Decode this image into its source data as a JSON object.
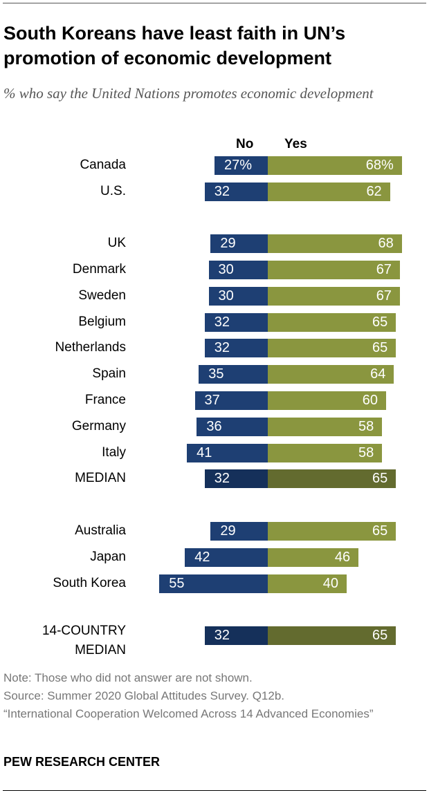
{
  "title": "South Koreans have least faith in UN’s promotion of economic development",
  "subtitle": "% who say the United Nations promotes economic development",
  "colors": {
    "no": "#1e3f73",
    "yes": "#8a963f",
    "no_median": "#15305a",
    "yes_median": "#636b2f"
  },
  "chart_data": {
    "type": "bar",
    "orientation": "horizontal-diverging",
    "series_labels": {
      "no": "No",
      "yes": "Yes"
    },
    "rows": [
      {
        "label": "Canada",
        "no": 27,
        "yes": 68,
        "no_text": "27%",
        "yes_text": "68%"
      },
      {
        "label": "U.S.",
        "no": 32,
        "yes": 62,
        "no_text": "32",
        "yes_text": "62"
      },
      {
        "label": "UK",
        "no": 29,
        "yes": 68,
        "no_text": "29",
        "yes_text": "68"
      },
      {
        "label": "Denmark",
        "no": 30,
        "yes": 67,
        "no_text": "30",
        "yes_text": "67"
      },
      {
        "label": "Sweden",
        "no": 30,
        "yes": 67,
        "no_text": "30",
        "yes_text": "67"
      },
      {
        "label": "Belgium",
        "no": 32,
        "yes": 65,
        "no_text": "32",
        "yes_text": "65"
      },
      {
        "label": "Netherlands",
        "no": 32,
        "yes": 65,
        "no_text": "32",
        "yes_text": "65"
      },
      {
        "label": "Spain",
        "no": 35,
        "yes": 64,
        "no_text": "35",
        "yes_text": "64"
      },
      {
        "label": "France",
        "no": 37,
        "yes": 60,
        "no_text": "37",
        "yes_text": "60"
      },
      {
        "label": "Germany",
        "no": 36,
        "yes": 58,
        "no_text": "36",
        "yes_text": "58"
      },
      {
        "label": "Italy",
        "no": 41,
        "yes": 58,
        "no_text": "41",
        "yes_text": "58"
      },
      {
        "label": "MEDIAN",
        "no": 32,
        "yes": 65,
        "no_text": "32",
        "yes_text": "65",
        "median": true
      },
      {
        "label": "Australia",
        "no": 29,
        "yes": 65,
        "no_text": "29",
        "yes_text": "65"
      },
      {
        "label": "Japan",
        "no": 42,
        "yes": 46,
        "no_text": "42",
        "yes_text": "46"
      },
      {
        "label": "South Korea",
        "no": 55,
        "yes": 40,
        "no_text": "55",
        "yes_text": "40"
      },
      {
        "label": "14-COUNTRY MEDIAN",
        "no": 32,
        "yes": 65,
        "no_text": "32",
        "yes_text": "65",
        "median": true
      }
    ]
  },
  "footer": {
    "note": "Note: Those who did not answer are not shown.",
    "source": "Source: Summer 2020 Global Attitudes Survey. Q12b.",
    "report": "“International Cooperation Welcomed Across 14 Advanced Economies”",
    "brand": "PEW RESEARCH CENTER"
  }
}
